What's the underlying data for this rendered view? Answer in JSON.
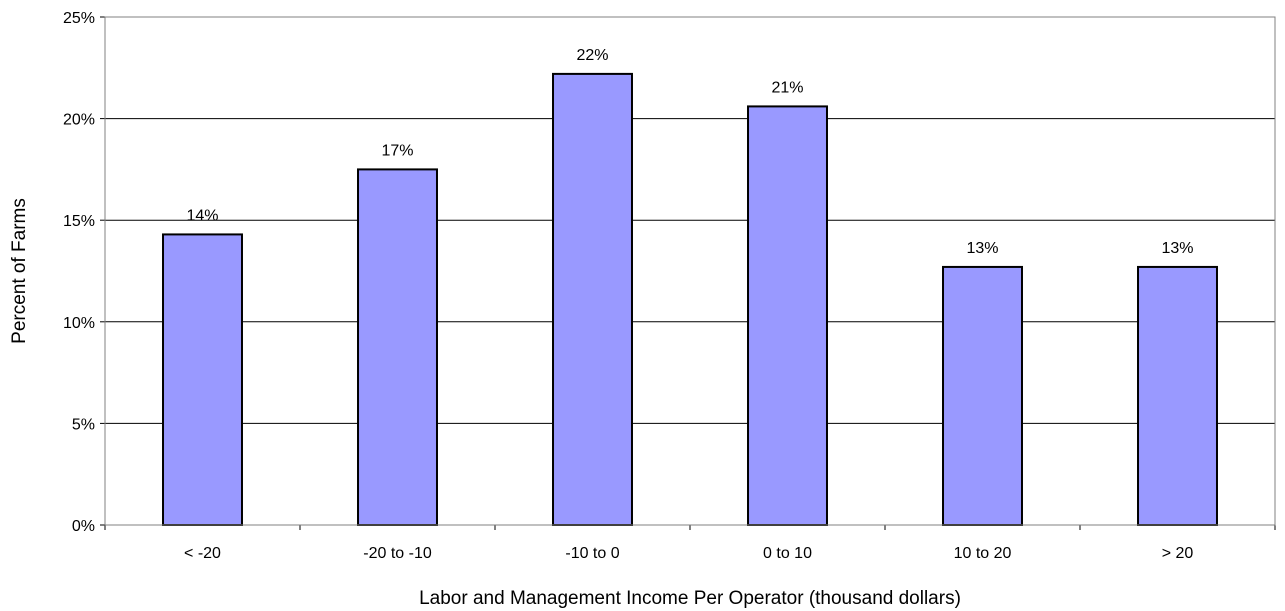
{
  "chart_data": {
    "type": "bar",
    "title": "",
    "xlabel": "Labor and Management Income Per Operator (thousand dollars)",
    "ylabel": "Percent of Farms",
    "categories": [
      "< -20",
      "-20 to -10",
      "-10 to 0",
      "0 to 10",
      "10 to 20",
      "> 20"
    ],
    "values": [
      14.3,
      17.5,
      22.2,
      20.6,
      12.7,
      12.7
    ],
    "data_labels": [
      "14%",
      "17%",
      "22%",
      "21%",
      "13%",
      "13%"
    ],
    "ylim": [
      0,
      25
    ],
    "yticks": [
      0,
      5,
      10,
      15,
      20,
      25
    ],
    "ytick_labels": [
      "0%",
      "5%",
      "10%",
      "15%",
      "20%",
      "25%"
    ],
    "grid": true,
    "legend": "none",
    "bar_color": "#9999FF",
    "bar_edge_color": "#000000"
  }
}
